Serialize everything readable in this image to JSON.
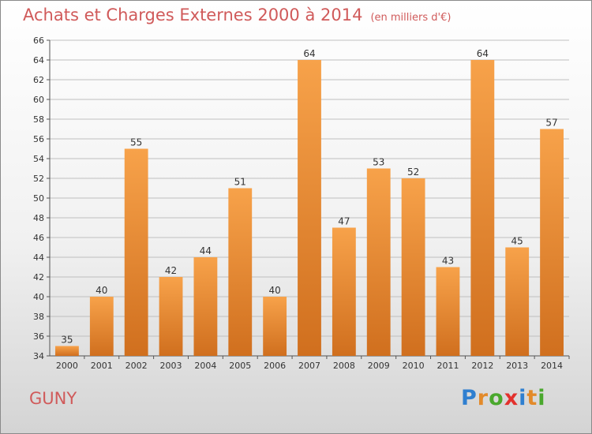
{
  "title": "Achats et Charges Externes 2000 à 2014",
  "subtitle": "(en milliers d'€)",
  "town": "GUNY",
  "logo": {
    "text": "Proxiti",
    "letters": [
      "P",
      "r",
      "o",
      "x",
      "i",
      "t",
      "i"
    ],
    "colors": [
      "#2f7fd0",
      "#e38a2a",
      "#4aa82d",
      "#e3312d",
      "#2f7fd0",
      "#e38a2a",
      "#4aa82d"
    ]
  },
  "colors": {
    "bar_light": "#f7a24a",
    "bar_dark": "#d06f1e",
    "title": "#d05a5a",
    "grid": "#bfbfbf"
  },
  "chart_data": {
    "type": "bar",
    "categories": [
      "2000",
      "2001",
      "2002",
      "2003",
      "2004",
      "2005",
      "2006",
      "2007",
      "2008",
      "2009",
      "2010",
      "2011",
      "2012",
      "2013",
      "2014"
    ],
    "values": [
      35,
      40,
      55,
      42,
      44,
      51,
      40,
      64,
      47,
      53,
      52,
      43,
      64,
      45,
      57
    ],
    "ylim": [
      34,
      66
    ],
    "yticks": [
      34,
      36,
      38,
      40,
      42,
      44,
      46,
      48,
      50,
      52,
      54,
      56,
      58,
      60,
      62,
      64,
      66
    ],
    "grid": true,
    "data_labels": true
  }
}
